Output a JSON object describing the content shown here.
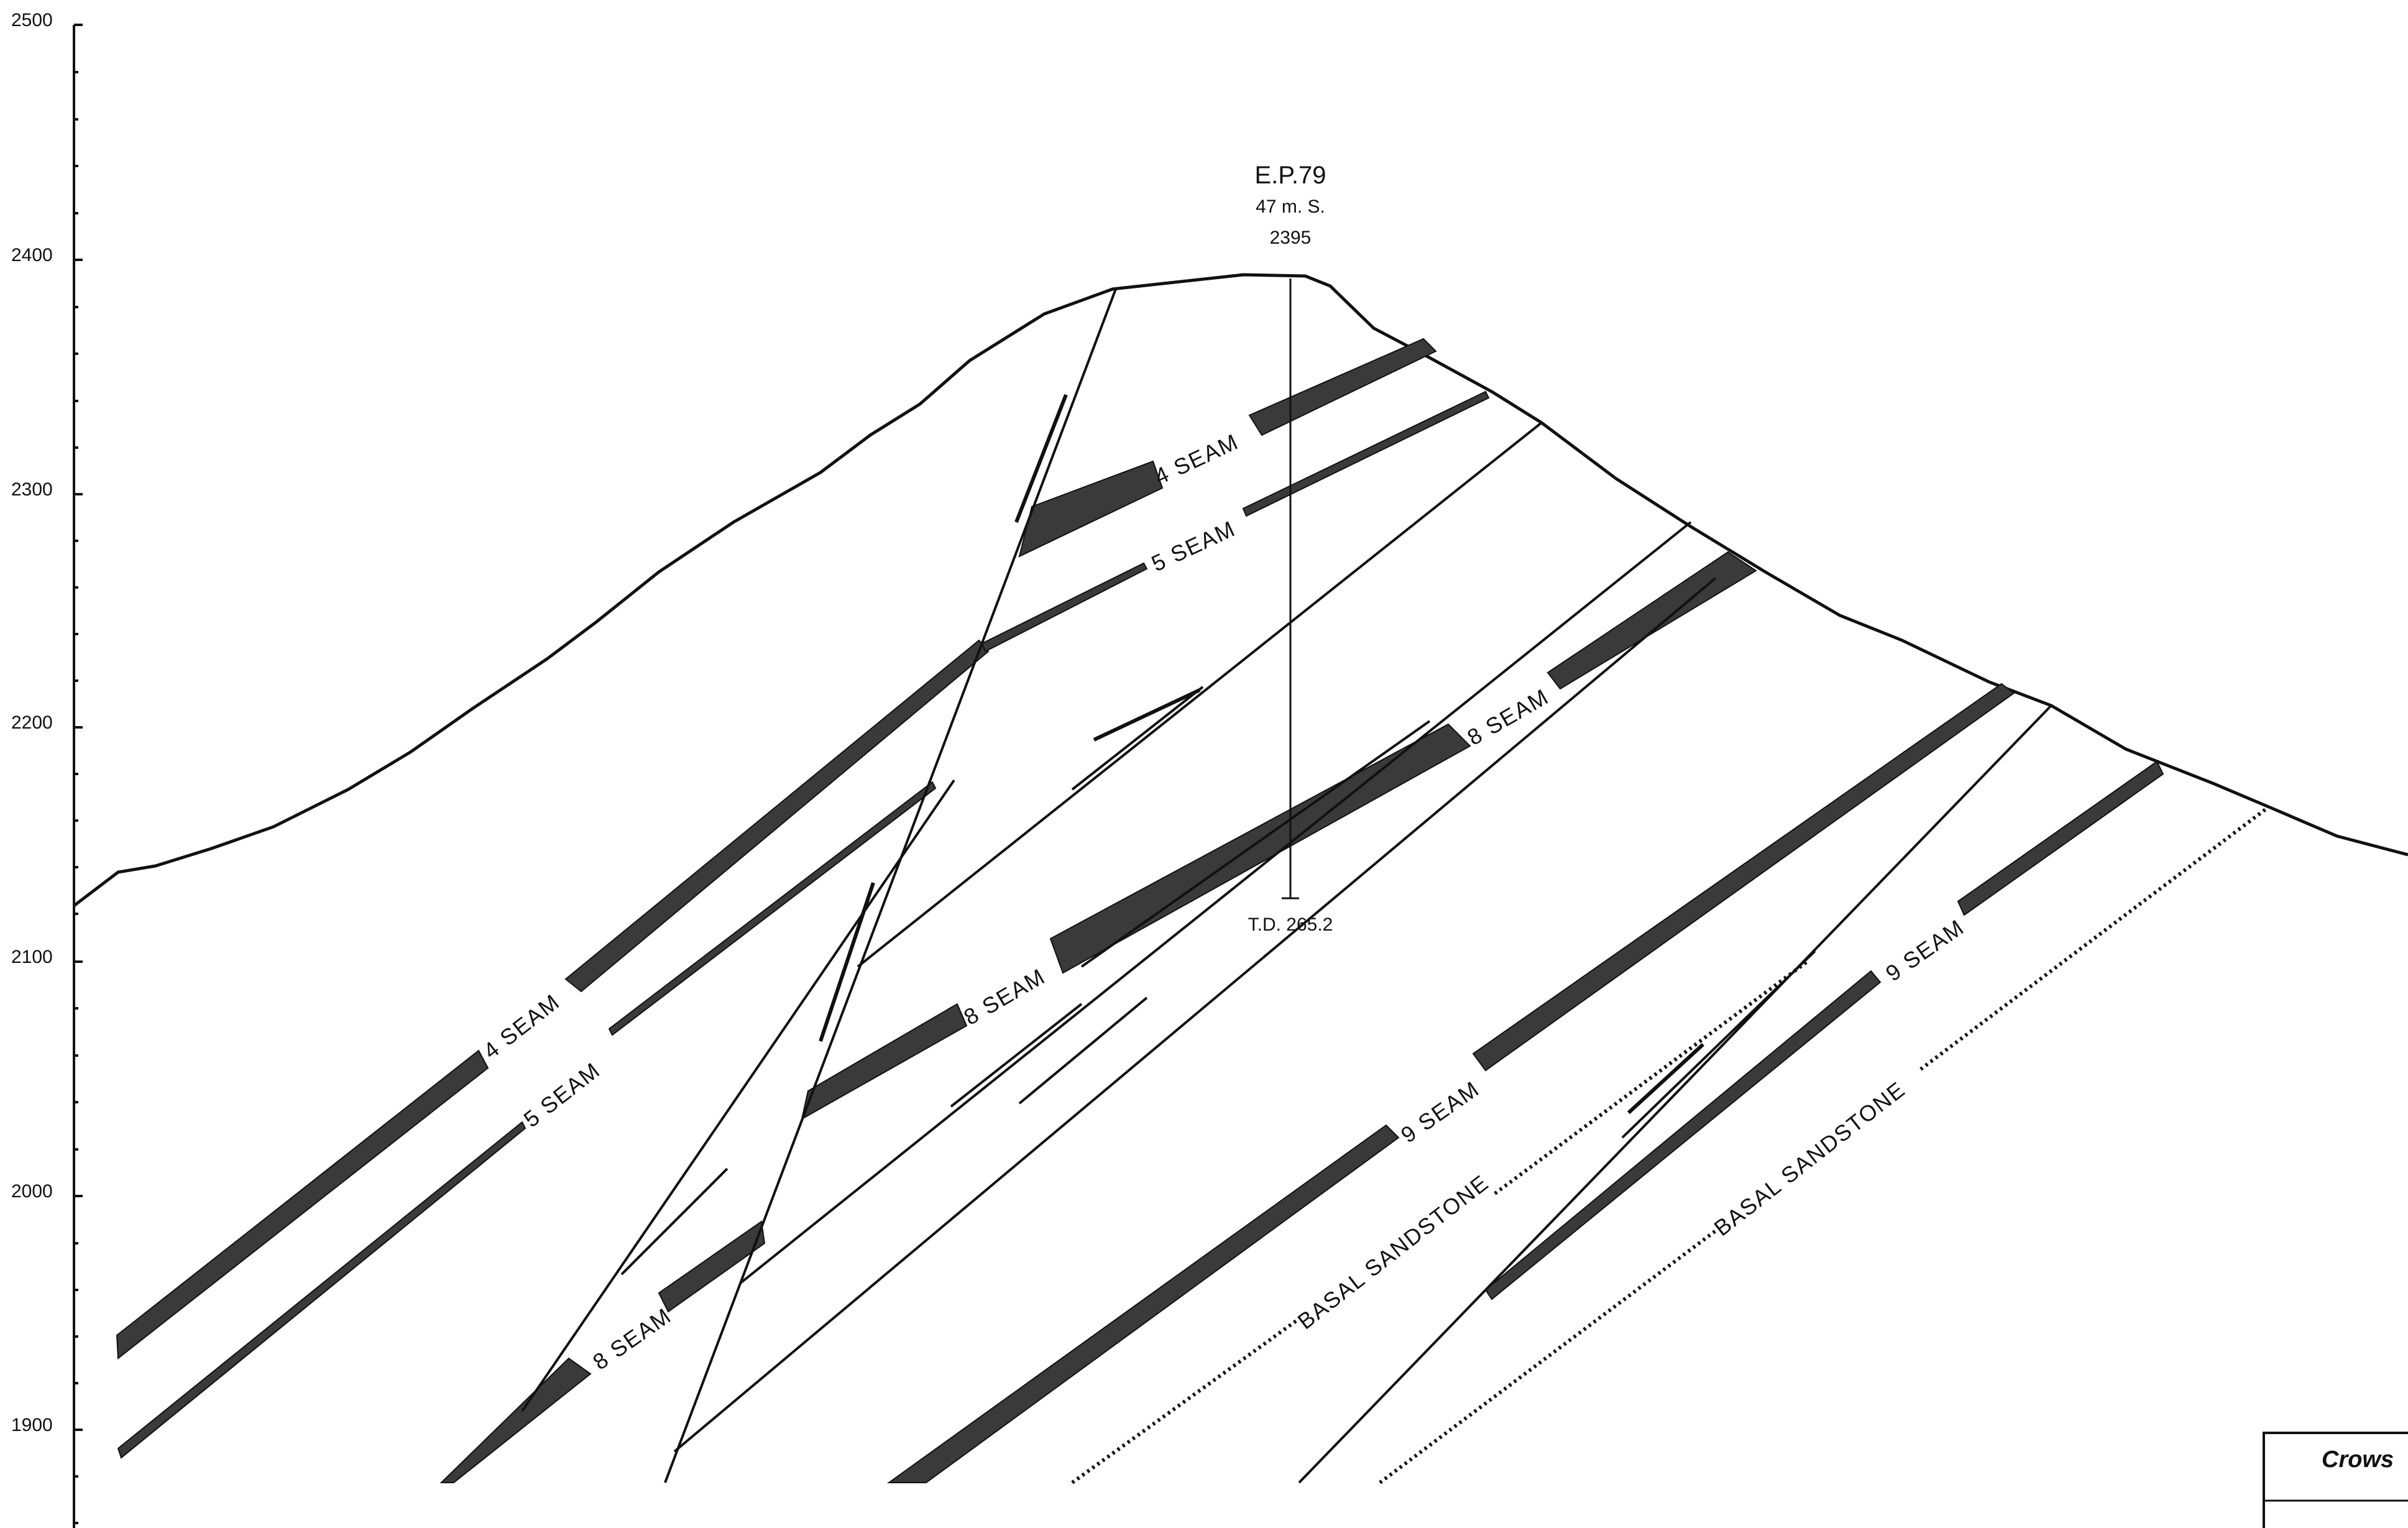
{
  "axis": {
    "elevation_labels": [
      "2500",
      "2400",
      "2300",
      "2200",
      "2100",
      "2000",
      "1900"
    ]
  },
  "well": {
    "name": "E.P.79",
    "offset": "47 m. S.",
    "elevation": "2395",
    "total_depth": "T.D. 265.2"
  },
  "seam_labels": [
    "4 SEAM",
    "5 SEAM",
    "4 SEAM",
    "5 SEAM",
    "8 SEAM",
    "8 SEAM",
    "8 SEAM",
    "9 SEAM",
    "9 SEAM",
    "BASAL SANDSTONE",
    "BASAL SANDSTONE"
  ],
  "legend": {
    "title": "Crows"
  },
  "colors": {
    "ink": "#111111",
    "seam_fill": "#3a3a3a"
  }
}
